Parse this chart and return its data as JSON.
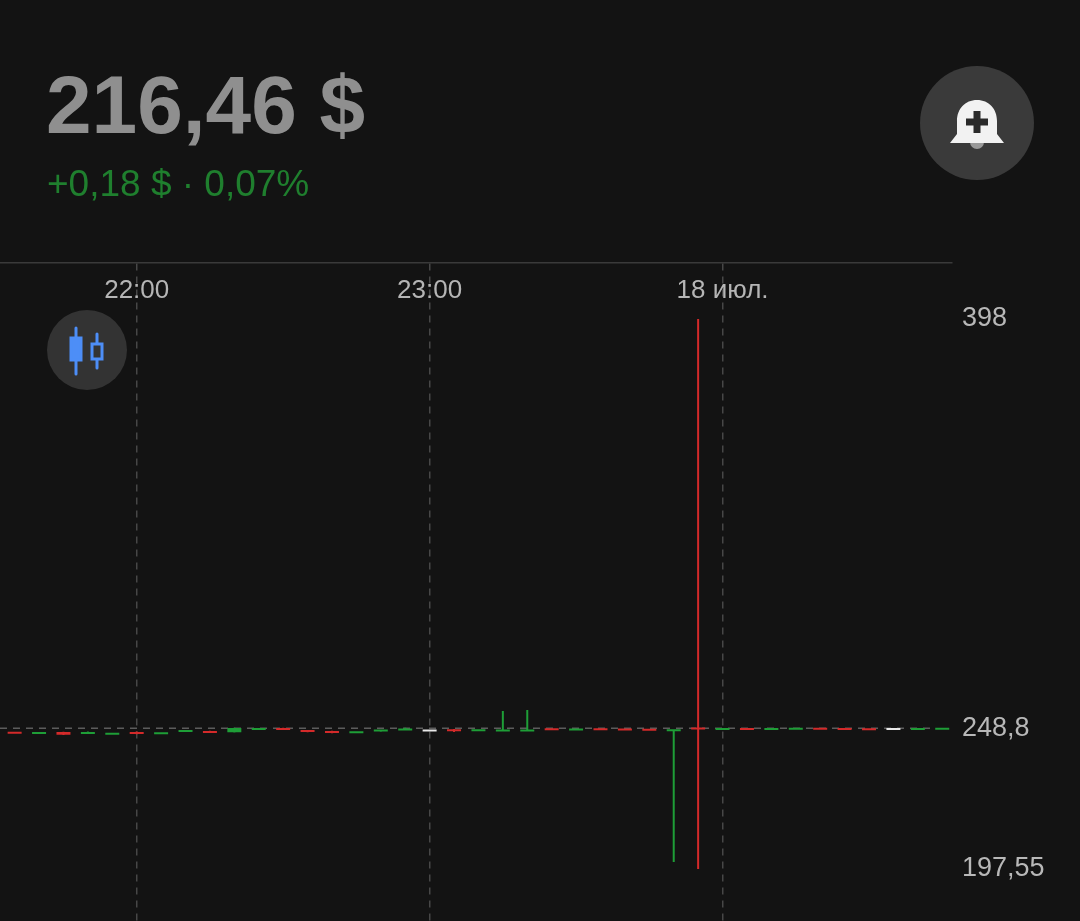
{
  "chart_data": {
    "type": "candlestick",
    "title": "216,46 $",
    "subtitle": "+0,18 $ · 0,07%",
    "x": [
      "--07-17T21:35",
      "--07-17T21:40",
      "--07-17T21:45",
      "--07-17T21:50",
      "--07-17T21:55",
      "--07-17T22:00",
      "--07-17T22:05",
      "--07-17T22:10",
      "--07-17T22:15",
      "--07-17T22:20",
      "--07-17T22:25",
      "--07-17T22:30",
      "--07-17T22:35",
      "--07-17T22:40",
      "--07-17T22:45",
      "--07-17T22:50",
      "--07-17T22:55",
      "--07-17T23:00",
      "--07-17T23:05",
      "--07-17T23:10",
      "--07-17T23:15",
      "--07-17T23:20",
      "--07-17T23:25",
      "--07-17T23:30",
      "--07-17T23:35",
      "--07-17T23:40",
      "--07-17T23:45",
      "--07-17T23:50",
      "--07-17T23:55",
      "--07-18T00:00",
      "--07-18T00:05",
      "--07-18T00:10",
      "--07-18T00:15",
      "--07-18T00:20",
      "--07-18T00:25",
      "--07-18T00:30",
      "--07-18T00:35",
      "--07-18T00:40",
      "--07-18T00:45"
    ],
    "ohlc": [
      [
        247.4,
        247.6,
        246.8,
        247.0
      ],
      [
        247.0,
        247.5,
        246.9,
        247.3
      ],
      [
        247.5,
        247.6,
        246.4,
        246.5
      ],
      [
        247.0,
        247.7,
        246.8,
        247.2
      ],
      [
        246.6,
        247.1,
        246.5,
        247.0
      ],
      [
        247.3,
        247.7,
        246.7,
        247.0
      ],
      [
        246.8,
        247.3,
        246.7,
        247.2
      ],
      [
        247.7,
        248.2,
        247.5,
        247.9
      ],
      [
        247.6,
        247.9,
        247.1,
        247.4
      ],
      [
        247.4,
        249.0,
        247.3,
        248.9
      ],
      [
        248.5,
        248.9,
        248.4,
        248.7
      ],
      [
        248.9,
        249.0,
        248.2,
        248.3
      ],
      [
        248.1,
        248.2,
        247.4,
        247.5
      ],
      [
        247.8,
        247.9,
        247.0,
        247.2
      ],
      [
        247.1,
        247.7,
        247.0,
        247.6
      ],
      [
        247.7,
        248.4,
        247.6,
        248.3
      ],
      [
        248.2,
        249.0,
        248.1,
        248.6
      ],
      [
        248.0,
        248.1,
        247.9,
        248.0
      ],
      [
        248.3,
        248.6,
        247.5,
        248.0
      ],
      [
        248.1,
        248.3,
        248.0,
        248.2
      ],
      [
        248.0,
        255.1,
        247.9,
        248.1
      ],
      [
        247.9,
        255.5,
        247.8,
        248.2
      ],
      [
        248.6,
        248.7,
        248.3,
        248.4
      ],
      [
        248.3,
        248.6,
        248.2,
        248.5
      ],
      [
        248.6,
        248.7,
        248.3,
        248.4
      ],
      [
        248.5,
        248.6,
        248.2,
        248.3
      ],
      [
        248.4,
        248.5,
        248.1,
        248.2
      ],
      [
        248.0,
        248.3,
        200.1,
        248.3
      ],
      [
        248.9,
        398,
        197.55,
        248.6
      ],
      [
        248.5,
        248.8,
        248.4,
        248.7
      ],
      [
        248.7,
        248.8,
        248.4,
        248.5
      ],
      [
        248.5,
        248.8,
        248.4,
        248.7
      ],
      [
        248.6,
        248.9,
        248.5,
        248.8
      ],
      [
        248.8,
        248.9,
        248.5,
        248.6
      ],
      [
        248.7,
        248.8,
        248.4,
        248.5
      ],
      [
        248.6,
        248.7,
        248.3,
        248.4
      ],
      [
        248.6,
        248.7,
        248.5,
        248.6
      ],
      [
        248.5,
        248.8,
        248.4,
        248.7
      ],
      [
        248.6,
        248.9,
        248.5,
        248.8
      ]
    ],
    "colors": [
      "#d42a2a",
      "#1e9e37",
      "#d42a2a",
      "#1e9e37",
      "#1e9e37",
      "#d42a2a",
      "#1e9e37",
      "#1e9e37",
      "#d42a2a",
      "#1e9e37",
      "#1e9e37",
      "#d42a2a",
      "#d42a2a",
      "#d42a2a",
      "#1e9e37",
      "#1e9e37",
      "#1e9e37",
      "#e8e8e8",
      "#d42a2a",
      "#1e9e37",
      "#1e9e37",
      "#1e9e37",
      "#d42a2a",
      "#1e9e37",
      "#d42a2a",
      "#d42a2a",
      "#d42a2a",
      "#1e9e37",
      "#d42a2a",
      "#1e9e37",
      "#d42a2a",
      "#1e9e37",
      "#1e9e37",
      "#d42a2a",
      "#d42a2a",
      "#d42a2a",
      "#e8e8e8",
      "#1e9e37",
      "#1e9e37"
    ],
    "xlim": [
      "--07-17T21:32",
      "--07-18T00:47"
    ],
    "xticks": [
      {
        "value": "--07-17T22:00",
        "label": "22:00"
      },
      {
        "value": "--07-17T23:00",
        "label": "23:00"
      },
      {
        "value": "--07-18T00:00",
        "label": "18 июл."
      }
    ],
    "ylim": [
      178.6,
      418.4
    ],
    "yticks": [
      398,
      {
        "value": 248.8,
        "label": "248,8"
      },
      {
        "value": 197.55,
        "label": "197,55"
      }
    ],
    "grid": "x",
    "ref_lines": [
      {
        "axis": "y",
        "value": 248.8,
        "color": "#5c5c5c",
        "line_style": "dashed"
      }
    ]
  }
}
